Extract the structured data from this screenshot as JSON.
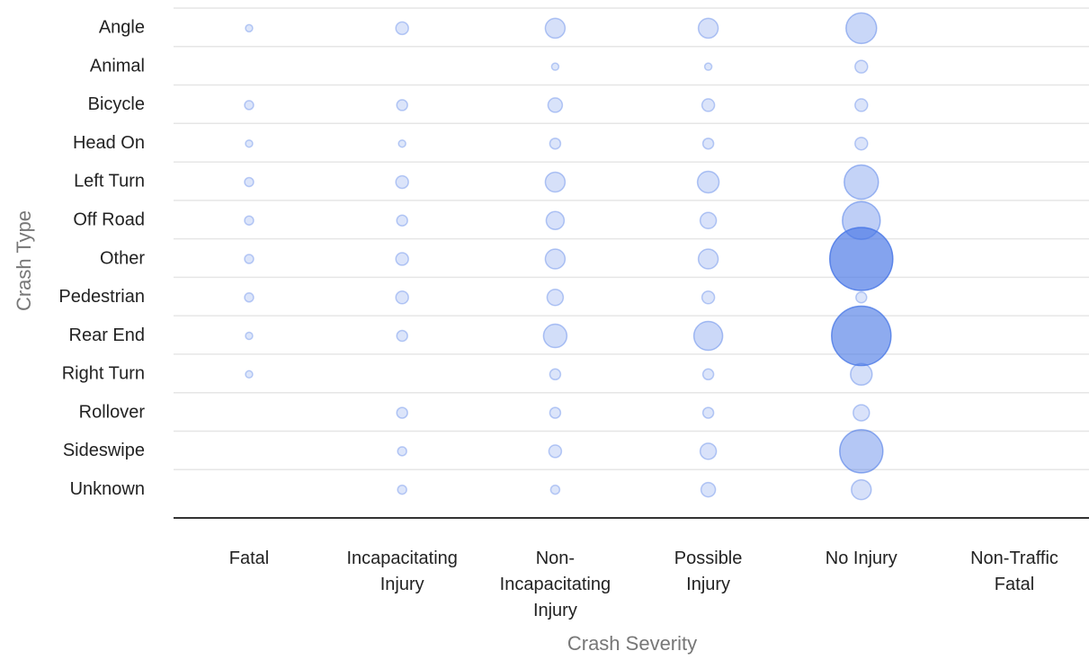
{
  "chart_data": {
    "type": "bubble",
    "x_label": "Crash Severity",
    "y_label": "Crash Type",
    "x": [
      "Fatal",
      "Incapacitating\nInjury",
      "Non-\nIncapacitating\nInjury",
      "Possible\nInjury",
      "No Injury",
      "Non-Traffic\nFatal"
    ],
    "y": [
      "Angle",
      "Animal",
      "Bicycle",
      "Head On",
      "Left Turn",
      "Off Road",
      "Other",
      "Pedestrian",
      "Rear End",
      "Right Turn",
      "Rollover",
      "Sideswipe",
      "Unknown"
    ],
    "values": [
      [
        16,
        49,
        121,
        121,
        289,
        null
      ],
      [
        null,
        null,
        16,
        16,
        49,
        null
      ],
      [
        25,
        36,
        64,
        49,
        49,
        null
      ],
      [
        16,
        16,
        36,
        36,
        49,
        null
      ],
      [
        25,
        49,
        121,
        144,
        361,
        null
      ],
      [
        25,
        36,
        100,
        81,
        441,
        null
      ],
      [
        25,
        49,
        121,
        121,
        1225,
        null
      ],
      [
        25,
        49,
        81,
        49,
        36,
        null
      ],
      [
        16,
        36,
        169,
        256,
        1089,
        null
      ],
      [
        16,
        null,
        36,
        36,
        144,
        null
      ],
      [
        null,
        36,
        36,
        36,
        81,
        null
      ],
      [
        null,
        25,
        49,
        81,
        576,
        null
      ],
      [
        null,
        25,
        25,
        64,
        121,
        null
      ]
    ],
    "color": "#4a78e6"
  }
}
